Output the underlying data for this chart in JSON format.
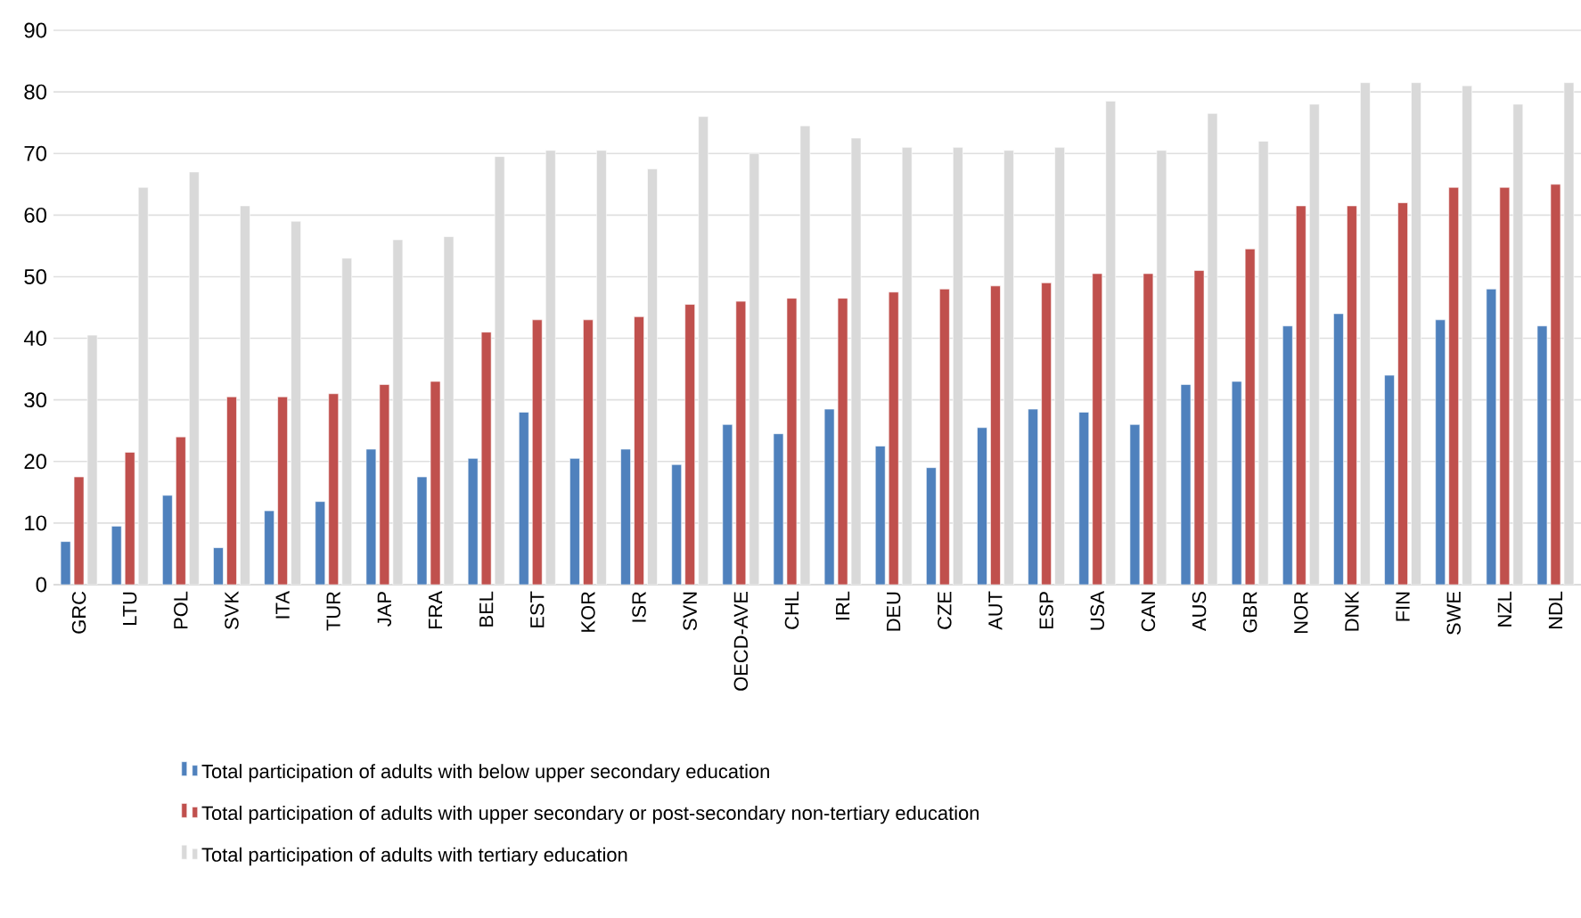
{
  "chart_data": {
    "type": "bar",
    "categories": [
      "GRC",
      "LTU",
      "POL",
      "SVK",
      "ITA",
      "TUR",
      "JAP",
      "FRA",
      "BEL",
      "EST",
      "KOR",
      "ISR",
      "SVN",
      "OECD-AVE",
      "CHL",
      "IRL",
      "DEU",
      "CZE",
      "AUT",
      "ESP",
      "USA",
      "CAN",
      "AUS",
      "GBR",
      "NOR",
      "DNK",
      "FIN",
      "SWE",
      "NZL",
      "NDL"
    ],
    "series": [
      {
        "name": "Total participation of adults with below upper secondary education",
        "color": "#4f81bd",
        "values": [
          7,
          9.5,
          14.5,
          6,
          12,
          13.5,
          22,
          17.5,
          20.5,
          28,
          20.5,
          22,
          19.5,
          26,
          24.5,
          28.5,
          22.5,
          19,
          25.5,
          28.5,
          28,
          26,
          32.5,
          33,
          42,
          44,
          34,
          43,
          48,
          42
        ]
      },
      {
        "name": "Total participation of adults with upper secondary or post-secondary non-tertiary education",
        "color": "#c0504d",
        "values": [
          17.5,
          21.5,
          24,
          30.5,
          30.5,
          31,
          32.5,
          33,
          41,
          43,
          43,
          43.5,
          45.5,
          46,
          46.5,
          46.5,
          47.5,
          48,
          48.5,
          49,
          50.5,
          50.5,
          51,
          54.5,
          61.5,
          61.5,
          62,
          64.5,
          64.5,
          65
        ]
      },
      {
        "name": "Total participation of adults with tertiary education",
        "color": "#d9d9d9",
        "values": [
          40.5,
          64.5,
          67,
          61.5,
          59,
          53,
          56,
          56.5,
          69.5,
          70.5,
          70.5,
          67.5,
          76,
          70,
          74.5,
          72.5,
          71,
          71,
          70.5,
          71,
          78.5,
          70.5,
          76.5,
          72,
          78,
          81.5,
          81.5,
          81,
          78,
          81.5
        ]
      }
    ],
    "ylim": [
      0,
      90
    ],
    "yticks": [
      0,
      10,
      20,
      30,
      40,
      50,
      60,
      70,
      80,
      90
    ],
    "grid": "y",
    "legend": "bottom"
  }
}
